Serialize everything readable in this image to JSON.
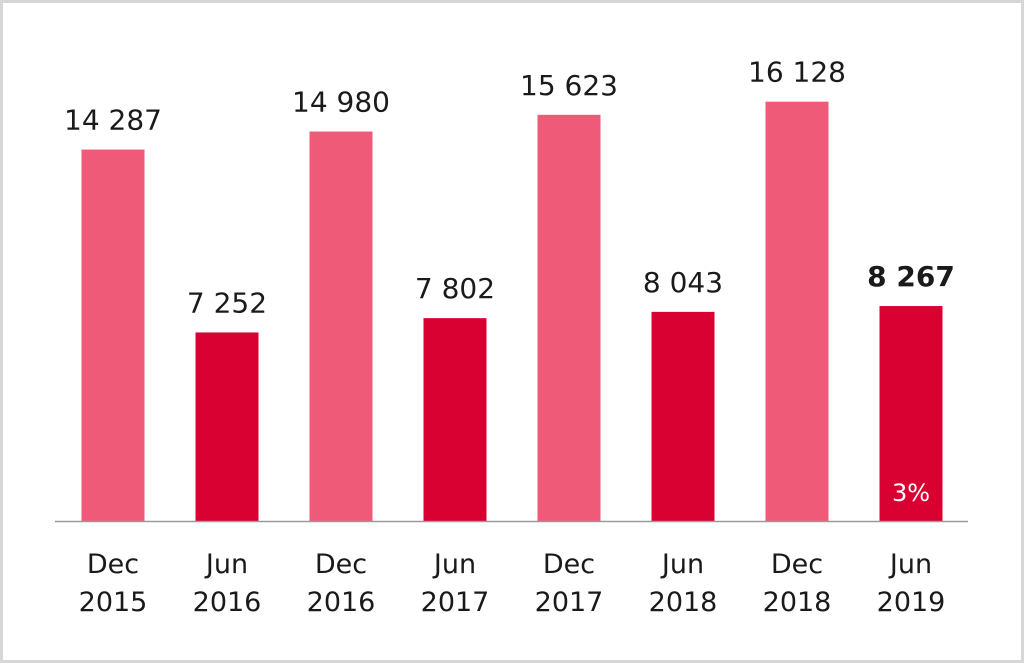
{
  "chart_data": {
    "type": "bar",
    "categories": [
      [
        "Dec",
        "2015"
      ],
      [
        "Jun",
        "2016"
      ],
      [
        "Dec",
        "2016"
      ],
      [
        "Jun",
        "2017"
      ],
      [
        "Dec",
        "2017"
      ],
      [
        "Jun",
        "2018"
      ],
      [
        "Dec",
        "2018"
      ],
      [
        "Jun",
        "2019"
      ]
    ],
    "values": [
      14287,
      7252,
      14980,
      7802,
      15623,
      8043,
      16128,
      8267
    ],
    "value_labels": [
      "14 287",
      "7 252",
      "14 980",
      "7 802",
      "15 623",
      "8 043",
      "16 128",
      "8 267"
    ],
    "highlighted_index": 7,
    "bar_annotation": {
      "index": 7,
      "text": "3%"
    },
    "ylim": [
      0,
      18000
    ],
    "grid": false,
    "title": "",
    "xlabel": "",
    "ylabel": "",
    "colors": {
      "dec_bar": "#ef5a78",
      "jun_bar": "#d90032",
      "axis": "#9a9a9a"
    }
  }
}
